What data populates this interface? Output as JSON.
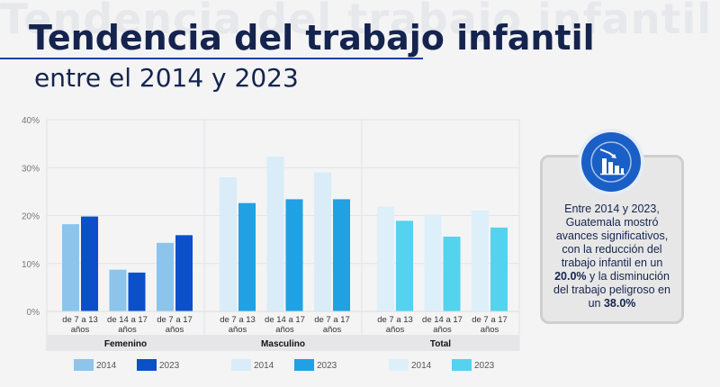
{
  "header": {
    "background_text": "Tendencia del trabajo infantil",
    "title": "Tendencia del trabajo infantil",
    "subtitle": "entre el 2014 y 2023"
  },
  "callout": {
    "text_part1": "Entre 2014 y 2023, Guatemala mostró avances significativos, con la reducción del trabajo infantil en un ",
    "highlight1": "20.0%",
    "text_part2": " y la disminución del trabajo peligroso en un ",
    "highlight2": "38.0%",
    "icon": "declining-bar-chart-icon"
  },
  "chart_data": {
    "type": "bar",
    "ylim": [
      0,
      40
    ],
    "yticks": [
      "0%",
      "10%",
      "20%",
      "30%",
      "40%"
    ],
    "groups": [
      {
        "name": "Femenino",
        "categories": [
          [
            "de 7 a 13",
            "años"
          ],
          [
            "de 14 a 17",
            "años"
          ],
          [
            "de 7 a 17",
            "años"
          ]
        ],
        "series": [
          {
            "name": "2014",
            "color": "#8cc4ec",
            "values": [
              18.2,
              8.7,
              14.3
            ]
          },
          {
            "name": "2023",
            "color": "#0b4fc9",
            "values": [
              19.8,
              8.1,
              15.9
            ]
          }
        ]
      },
      {
        "name": "Masculino",
        "categories": [
          [
            "de 7 a 13",
            "años"
          ],
          [
            "de 14 a 17",
            "años"
          ],
          [
            "de 7 a 17",
            "años"
          ]
        ],
        "series": [
          {
            "name": "2014",
            "color": "#d9ecf8",
            "values": [
              28.0,
              32.3,
              29.0
            ]
          },
          {
            "name": "2023",
            "color": "#1fa1e4",
            "values": [
              22.6,
              23.4,
              23.4
            ]
          }
        ]
      },
      {
        "name": "Total",
        "categories": [
          [
            "de 7 a 13",
            "años"
          ],
          [
            "de 14 a 17",
            "años"
          ],
          [
            "de 7 a 17",
            "años"
          ]
        ],
        "series": [
          {
            "name": "2014",
            "color": "#ddf0fa",
            "values": [
              21.9,
              20.2,
              21.1
            ]
          },
          {
            "name": "2023",
            "color": "#55d2ee",
            "values": [
              18.9,
              15.6,
              17.5
            ]
          }
        ]
      }
    ]
  }
}
